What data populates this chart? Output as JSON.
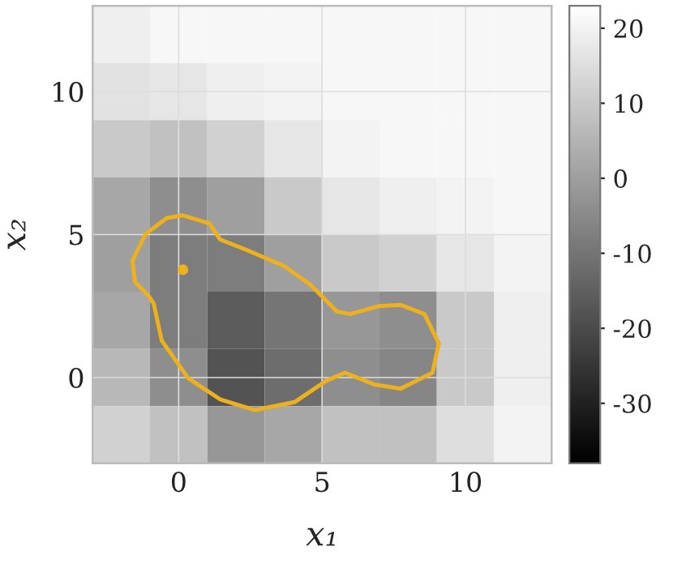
{
  "chart_data": [
    {
      "type": "heatmap",
      "categories": [
        null,
        null,
        null,
        null,
        null,
        null,
        null,
        null
      ],
      "y_categories": [
        null,
        null,
        null,
        null,
        null,
        null,
        null,
        null
      ],
      "cells": [
        [
          19,
          21,
          21,
          21,
          21,
          21,
          21,
          21
        ],
        [
          16,
          17,
          19,
          20,
          21,
          21,
          21,
          21
        ],
        [
          10,
          8,
          12,
          17,
          20,
          21,
          21,
          21
        ],
        [
          2,
          -4,
          0,
          10,
          17,
          19,
          20,
          21
        ],
        [
          0,
          -8,
          -8,
          0,
          10,
          12,
          17,
          20
        ],
        [
          2,
          -8,
          -16,
          -10,
          -2,
          -4,
          10,
          19
        ],
        [
          6,
          -4,
          -18,
          -12,
          -4,
          -6,
          10,
          19
        ],
        [
          12,
          8,
          -2,
          2,
          8,
          8,
          15,
          20
        ]
      ],
      "clim": [
        -38,
        23
      ],
      "cticks": [
        -30,
        -20,
        -10,
        0,
        10,
        20
      ],
      "tick_labels": false,
      "grid": true
    },
    {
      "type": "line",
      "xlabel": "x₁",
      "ylabel": "x₂",
      "xlim": [
        -3,
        13
      ],
      "ylim": [
        -3,
        13
      ],
      "xticks": [
        0,
        5,
        10
      ],
      "yticks": [
        0,
        5,
        10
      ],
      "grid": true,
      "series": [
        {
          "color": "#edb120",
          "x": [
            -1.61,
            -1.15,
            -0.41,
            0.15,
            1.07,
            1.44,
            2.37,
            3.67,
            4.59,
            5.52,
            5.98,
            7.0,
            7.74,
            8.57,
            9.07
          ],
          "values": [
            4.09,
            5.02,
            5.58,
            5.67,
            5.39,
            4.83,
            4.46,
            3.9,
            3.25,
            2.31,
            2.22,
            2.5,
            2.54,
            2.22,
            1.19
          ]
        },
        {
          "color": "#edb120",
          "x": [
            -1.61,
            -1.52,
            -1.06,
            -0.87,
            -0.59,
            0.33,
            1.44,
            2.65,
            4.04,
            5.15,
            5.8,
            6.81,
            7.74,
            8.85,
            9.07
          ],
          "values": [
            4.09,
            3.34,
            2.87,
            2.59,
            1.29,
            -0.02,
            -0.76,
            -1.14,
            -0.86,
            -0.11,
            0.17,
            -0.24,
            -0.39,
            0.17,
            1.19
          ]
        },
        {
          "type": "scatter",
          "color": "#edb120",
          "marker": "circle",
          "x": [
            0.15
          ],
          "values": [
            3.77
          ]
        }
      ]
    }
  ]
}
